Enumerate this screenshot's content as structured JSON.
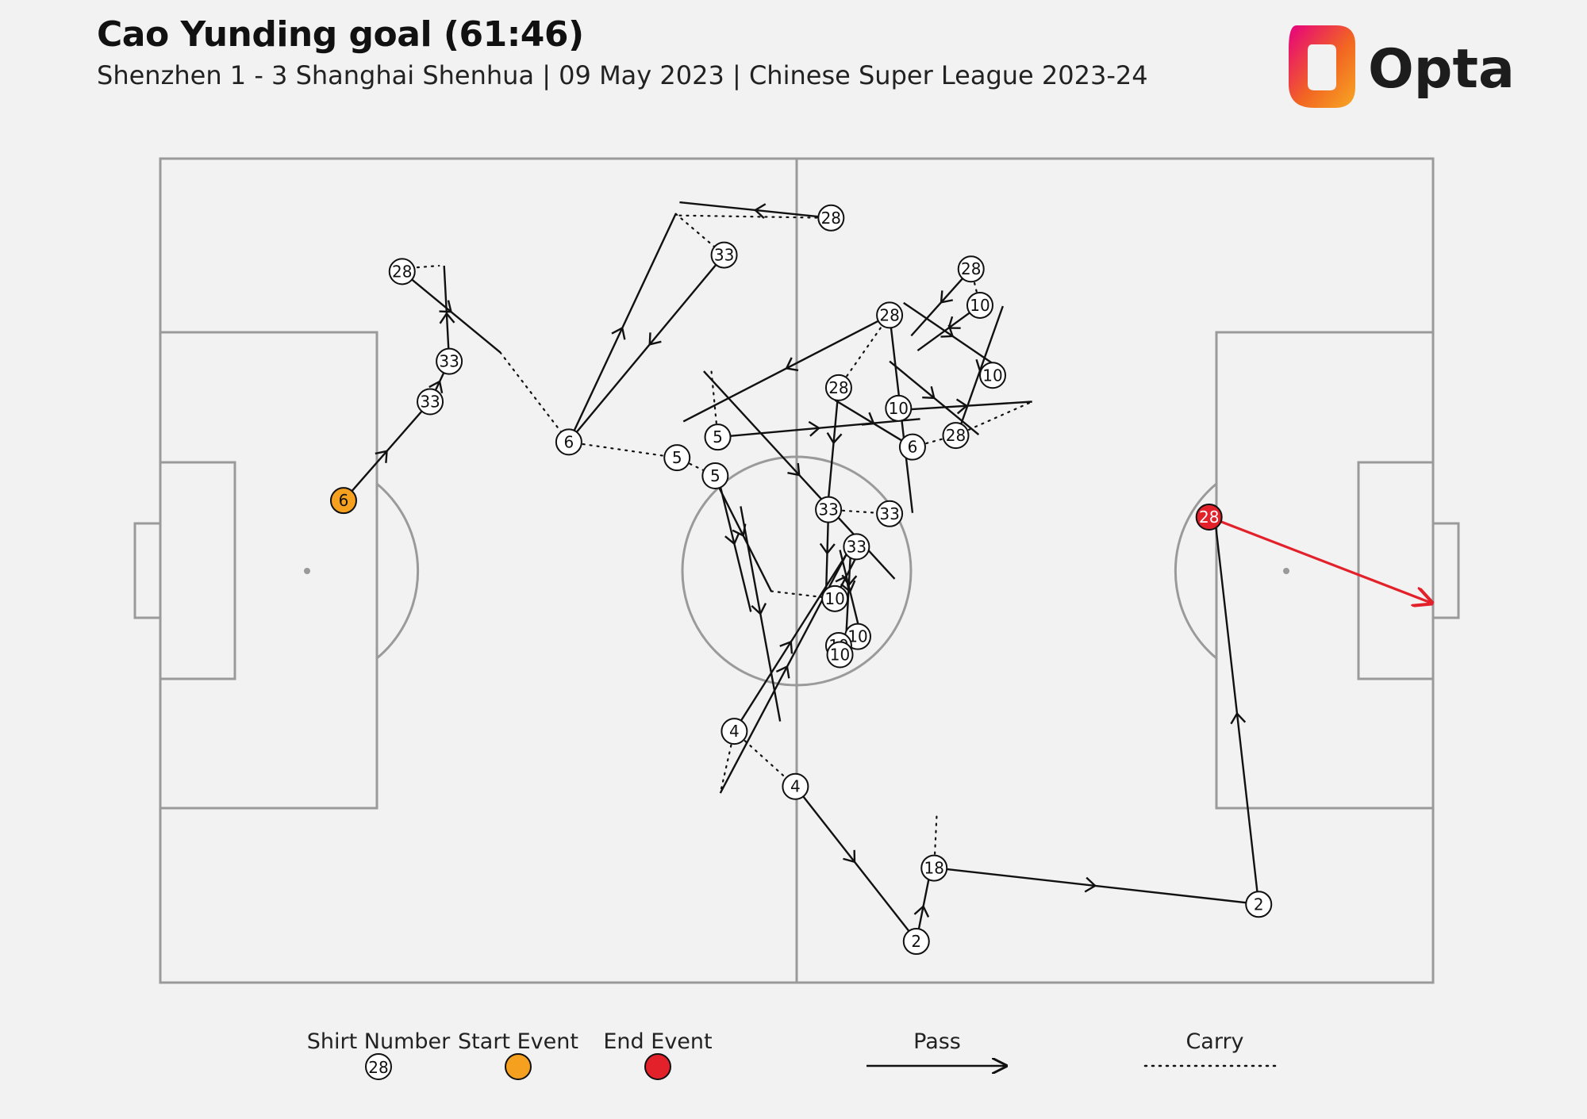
{
  "header": {
    "title": "Cao Yunding goal (61:46)",
    "subtitle": "Shenzhen 1 - 3 Shanghai Shenhua | 09 May 2023 | Chinese Super League 2023-24",
    "brand": "Opta"
  },
  "colors": {
    "background": "#f2f2f2",
    "pitch_lines": "#9a9a9a",
    "event_line": "#111111",
    "start_event": "#f5a01f",
    "end_event": "#e3212b",
    "shot_arrow": "#e3212b",
    "logo_gradient": [
      "#e6007e",
      "#f26522",
      "#f7a823"
    ]
  },
  "legend": {
    "shirt_number_label": "Shirt Number",
    "shirt_number_example": "28",
    "start_event_label": "Start Event",
    "end_event_label": "End Event",
    "pass_label": "Pass",
    "carry_label": "Carry"
  },
  "chart_data": {
    "type": "pitch-sequence",
    "pitch": {
      "length": 100,
      "width": 100,
      "attacking_direction": "left-to-right"
    },
    "players": [
      {
        "shirt": "6",
        "x": 14.4,
        "y": 41.5,
        "kind": "start"
      },
      {
        "shirt": "33",
        "x": 21.2,
        "y": 29.5
      },
      {
        "shirt": "33",
        "x": 22.7,
        "y": 24.6
      },
      {
        "shirt": "28",
        "x": 19.0,
        "y": 13.7
      },
      {
        "shirt": "6",
        "x": 32.1,
        "y": 34.4
      },
      {
        "shirt": "33",
        "x": 44.3,
        "y": 11.7
      },
      {
        "shirt": "28",
        "x": 52.7,
        "y": 7.2
      },
      {
        "shirt": "5",
        "x": 40.6,
        "y": 36.3
      },
      {
        "shirt": "5",
        "x": 43.8,
        "y": 33.8
      },
      {
        "shirt": "5",
        "x": 43.6,
        "y": 38.5
      },
      {
        "shirt": "28",
        "x": 53.3,
        "y": 27.8
      },
      {
        "shirt": "28",
        "x": 57.3,
        "y": 19.0
      },
      {
        "shirt": "10",
        "x": 58.0,
        "y": 30.3
      },
      {
        "shirt": "6",
        "x": 59.1,
        "y": 35.0
      },
      {
        "shirt": "28",
        "x": 63.7,
        "y": 13.4
      },
      {
        "shirt": "10",
        "x": 64.4,
        "y": 17.8
      },
      {
        "shirt": "10",
        "x": 65.4,
        "y": 26.3
      },
      {
        "shirt": "28",
        "x": 62.5,
        "y": 33.6
      },
      {
        "shirt": "33",
        "x": 52.5,
        "y": 42.6
      },
      {
        "shirt": "33",
        "x": 57.3,
        "y": 43.1
      },
      {
        "shirt": "33",
        "x": 54.7,
        "y": 47.1
      },
      {
        "shirt": "10",
        "x": 53.0,
        "y": 53.4
      },
      {
        "shirt": "10",
        "x": 54.8,
        "y": 58.0
      },
      {
        "shirt": "10",
        "x": 53.3,
        "y": 59.1
      },
      {
        "shirt": "10",
        "x": 53.4,
        "y": 60.2
      },
      {
        "shirt": "4",
        "x": 45.1,
        "y": 69.5
      },
      {
        "shirt": "4",
        "x": 49.9,
        "y": 76.2
      },
      {
        "shirt": "18",
        "x": 60.8,
        "y": 86.1
      },
      {
        "shirt": "2",
        "x": 59.4,
        "y": 95.0
      },
      {
        "shirt": "2",
        "x": 86.3,
        "y": 90.5
      },
      {
        "shirt": "28",
        "x": 82.4,
        "y": 43.5,
        "kind": "end"
      }
    ],
    "passes": [
      {
        "x1": 14.4,
        "y1": 41.5,
        "x2": 21.2,
        "y2": 29.5
      },
      {
        "x1": 21.2,
        "y1": 29.5,
        "x2": 22.7,
        "y2": 24.6
      },
      {
        "x1": 22.7,
        "y1": 24.6,
        "x2": 22.3,
        "y2": 13.0
      },
      {
        "x1": 19.0,
        "y1": 13.7,
        "x2": 26.7,
        "y2": 23.5
      },
      {
        "x1": 32.1,
        "y1": 34.4,
        "x2": 40.5,
        "y2": 6.7
      },
      {
        "x1": 44.3,
        "y1": 11.7,
        "x2": 32.6,
        "y2": 33.4
      },
      {
        "x1": 52.7,
        "y1": 7.2,
        "x2": 40.8,
        "y2": 5.3
      },
      {
        "x1": 43.8,
        "y1": 33.8,
        "x2": 59.7,
        "y2": 31.6
      },
      {
        "x1": 57.3,
        "y1": 19.0,
        "x2": 41.1,
        "y2": 31.9
      },
      {
        "x1": 43.8,
        "y1": 38.5,
        "x2": 46.4,
        "y2": 55.0
      },
      {
        "x1": 43.6,
        "y1": 39.0,
        "x2": 48.0,
        "y2": 52.5
      },
      {
        "x1": 42.7,
        "y1": 25.8,
        "x2": 57.7,
        "y2": 51.0
      },
      {
        "x1": 53.3,
        "y1": 27.8,
        "x2": 52.5,
        "y2": 41.2
      },
      {
        "x1": 57.3,
        "y1": 19.0,
        "x2": 59.1,
        "y2": 43.0
      },
      {
        "x1": 57.3,
        "y1": 24.6,
        "x2": 64.3,
        "y2": 33.5
      },
      {
        "x1": 53.0,
        "y1": 29.3,
        "x2": 59.1,
        "y2": 35.0
      },
      {
        "x1": 58.2,
        "y1": 30.5,
        "x2": 68.5,
        "y2": 29.5
      },
      {
        "x1": 58.4,
        "y1": 17.5,
        "x2": 66.1,
        "y2": 25.6
      },
      {
        "x1": 64.4,
        "y1": 17.8,
        "x2": 59.5,
        "y2": 23.3
      },
      {
        "x1": 63.7,
        "y1": 13.4,
        "x2": 59.0,
        "y2": 21.5
      },
      {
        "x1": 66.2,
        "y1": 17.9,
        "x2": 62.6,
        "y2": 33.6
      },
      {
        "x1": 52.5,
        "y1": 42.6,
        "x2": 52.3,
        "y2": 53.2
      },
      {
        "x1": 54.3,
        "y1": 46.0,
        "x2": 53.9,
        "y2": 57.5
      },
      {
        "x1": 53.4,
        "y1": 47.5,
        "x2": 55.0,
        "y2": 57.6
      },
      {
        "x1": 53.0,
        "y1": 53.4,
        "x2": 54.8,
        "y2": 48.0
      },
      {
        "x1": 45.1,
        "y1": 69.5,
        "x2": 54.0,
        "y2": 47.8
      },
      {
        "x1": 44.0,
        "y1": 77.0,
        "x2": 54.5,
        "y2": 46.3
      },
      {
        "x1": 45.6,
        "y1": 42.2,
        "x2": 48.7,
        "y2": 68.3
      },
      {
        "x1": 49.9,
        "y1": 76.2,
        "x2": 59.2,
        "y2": 94.5
      },
      {
        "x1": 59.4,
        "y1": 95.0,
        "x2": 60.5,
        "y2": 86.5
      },
      {
        "x1": 61.0,
        "y1": 86.1,
        "x2": 85.9,
        "y2": 90.4
      },
      {
        "x1": 86.3,
        "y1": 90.5,
        "x2": 82.9,
        "y2": 44.2
      }
    ],
    "carries": [
      {
        "x1": 20.2,
        "y1": 13.2,
        "x2": 21.9,
        "y2": 13.0
      },
      {
        "x1": 26.7,
        "y1": 23.5,
        "x2": 32.1,
        "y2": 34.4
      },
      {
        "x1": 32.1,
        "y1": 34.4,
        "x2": 40.6,
        "y2": 36.3
      },
      {
        "x1": 40.6,
        "y1": 36.3,
        "x2": 43.6,
        "y2": 38.5
      },
      {
        "x1": 40.5,
        "y1": 6.7,
        "x2": 44.3,
        "y2": 11.7
      },
      {
        "x1": 40.8,
        "y1": 6.9,
        "x2": 52.7,
        "y2": 7.2
      },
      {
        "x1": 43.8,
        "y1": 33.8,
        "x2": 43.3,
        "y2": 25.8
      },
      {
        "x1": 53.3,
        "y1": 27.8,
        "x2": 57.3,
        "y2": 19.0
      },
      {
        "x1": 59.1,
        "y1": 35.0,
        "x2": 62.5,
        "y2": 33.6
      },
      {
        "x1": 62.5,
        "y1": 33.6,
        "x2": 68.5,
        "y2": 29.5
      },
      {
        "x1": 64.4,
        "y1": 17.8,
        "x2": 63.7,
        "y2": 13.4
      },
      {
        "x1": 52.5,
        "y1": 42.6,
        "x2": 57.3,
        "y2": 43.1
      },
      {
        "x1": 48.0,
        "y1": 52.5,
        "x2": 53.0,
        "y2": 53.4
      },
      {
        "x1": 45.1,
        "y1": 69.5,
        "x2": 49.9,
        "y2": 76.2
      },
      {
        "x1": 45.1,
        "y1": 69.5,
        "x2": 44.0,
        "y2": 77.0
      },
      {
        "x1": 60.8,
        "y1": 86.1,
        "x2": 61.0,
        "y2": 79.8
      }
    ],
    "shot": {
      "shirt": "28",
      "x1": 82.4,
      "y1": 43.5,
      "x2": 100,
      "y2": 54.0
    }
  }
}
